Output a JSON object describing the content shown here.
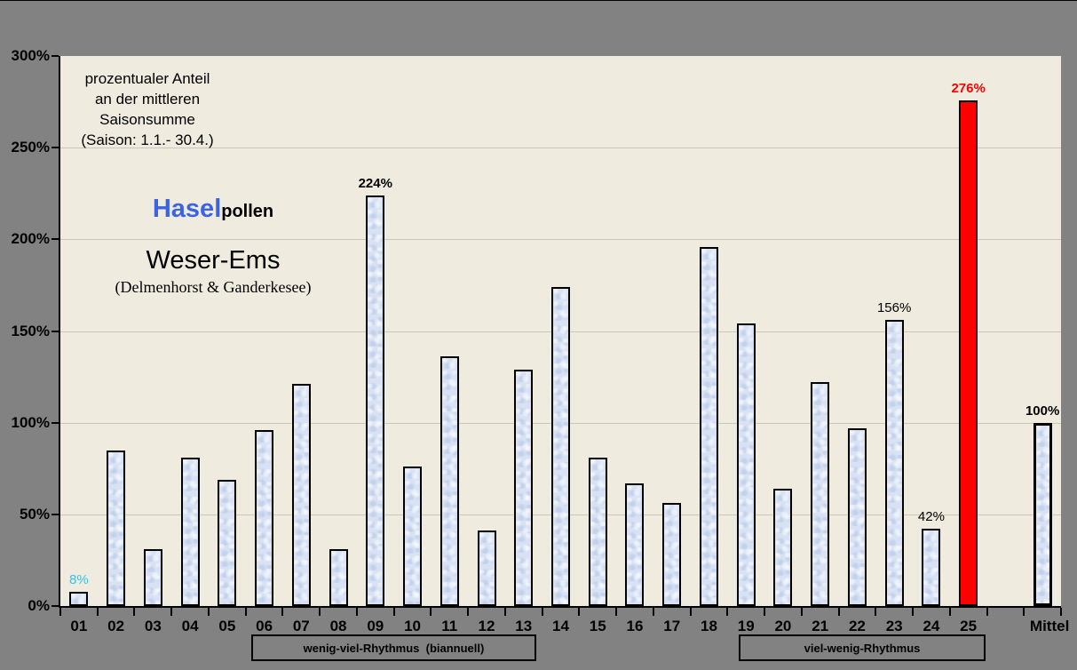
{
  "annotation": {
    "line1": "prozentualer Anteil",
    "line2": "an der mittleren",
    "line3": "Saisonsumme",
    "line4": "(Saison: 1.1.- 30.4.)"
  },
  "series_title": {
    "blue": "Hasel",
    "black": "pollen"
  },
  "region": {
    "name": "Weser-Ems",
    "sub": "(Delmenhorst & Ganderkesee)"
  },
  "colors": {
    "page_bg": "#828282",
    "plot_bg": "#efecdf",
    "grid": "#cbc7b8",
    "bar_fill": "#d8e2f4",
    "bar_highlight": "#ff0000",
    "label_cyan": "#2fc3f2",
    "label_red": "#ff0000",
    "hasel_blue": "#3c63e3"
  },
  "chart_data": {
    "type": "bar",
    "title": "Haselpollen — Weser-Ems (Delmenhorst & Ganderkesee)",
    "ylabel": "prozentualer Anteil an der mittleren Saisonsumme (Saison: 1.1.- 30.4.)",
    "xlabel": "",
    "ylim": [
      0,
      300
    ],
    "yticks": [
      0,
      50,
      100,
      150,
      200,
      250,
      300
    ],
    "ytick_suffix": "%",
    "grid": "horizontal",
    "legend_position": "none",
    "categories": [
      "01",
      "02",
      "03",
      "04",
      "05",
      "06",
      "07",
      "08",
      "09",
      "10",
      "11",
      "12",
      "13",
      "14",
      "15",
      "16",
      "17",
      "18",
      "19",
      "20",
      "21",
      "22",
      "23",
      "24",
      "25",
      "",
      "Mittel"
    ],
    "bars": [
      {
        "cat": "01",
        "value": 8,
        "label": "8%",
        "label_style": "cyan"
      },
      {
        "cat": "02",
        "value": 85
      },
      {
        "cat": "03",
        "value": 31
      },
      {
        "cat": "04",
        "value": 81
      },
      {
        "cat": "05",
        "value": 69
      },
      {
        "cat": "06",
        "value": 96
      },
      {
        "cat": "07",
        "value": 121
      },
      {
        "cat": "08",
        "value": 31
      },
      {
        "cat": "09",
        "value": 224,
        "label": "224%",
        "label_style": "bold"
      },
      {
        "cat": "10",
        "value": 76
      },
      {
        "cat": "11",
        "value": 136
      },
      {
        "cat": "12",
        "value": 41
      },
      {
        "cat": "13",
        "value": 129
      },
      {
        "cat": "14",
        "value": 174
      },
      {
        "cat": "15",
        "value": 81
      },
      {
        "cat": "16",
        "value": 67
      },
      {
        "cat": "17",
        "value": 56
      },
      {
        "cat": "18",
        "value": 196
      },
      {
        "cat": "19",
        "value": 154
      },
      {
        "cat": "20",
        "value": 64
      },
      {
        "cat": "21",
        "value": 122
      },
      {
        "cat": "22",
        "value": 97
      },
      {
        "cat": "23",
        "value": 156,
        "label": "156%"
      },
      {
        "cat": "24",
        "value": 42,
        "label": "42%"
      },
      {
        "cat": "25",
        "value": 276,
        "label": "276%",
        "label_style": "red",
        "fill": "red"
      },
      {
        "cat": "",
        "value": null
      },
      {
        "cat": "Mittel",
        "value": 100,
        "label": "100%",
        "label_style": "bold",
        "emphasis": true
      }
    ],
    "groups": [
      {
        "label": "wenig-viel-Rhythmus  (biannuell)"
      },
      {
        "label": "viel-wenig-Rhythmus"
      }
    ]
  }
}
